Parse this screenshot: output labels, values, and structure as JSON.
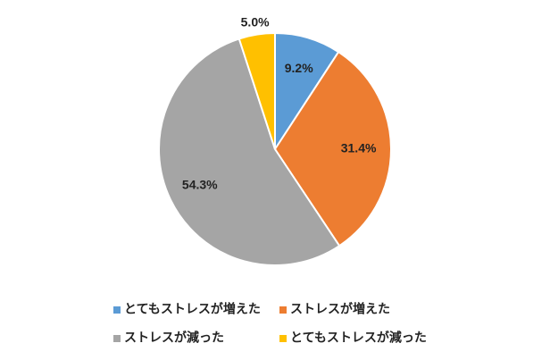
{
  "chart_data": {
    "type": "pie",
    "categories": [
      "とてもストレスが増えた",
      "ストレスが増えた",
      "ストレスが減った",
      "とてもストレスが減った"
    ],
    "values": [
      9.2,
      31.4,
      54.3,
      5.0
    ],
    "value_labels": [
      "9.2%",
      "31.4%",
      "54.3%",
      "5.0%"
    ],
    "colors": [
      "#5b9bd5",
      "#ed7d31",
      "#a5a5a5",
      "#ffc000"
    ],
    "legend": "bottom"
  }
}
